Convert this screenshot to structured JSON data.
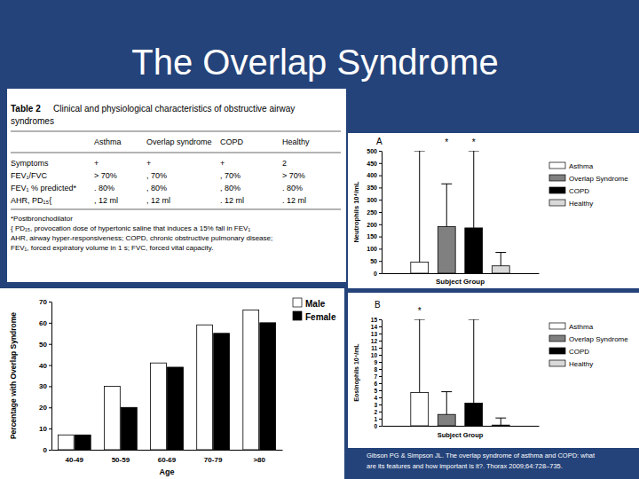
{
  "title": "The Overlap Syndrome",
  "table": {
    "caption": "Table 2",
    "title_lines": [
      "Clinical and physiological characteristics of obstructive airway",
      "syndromes"
    ],
    "columns": [
      "Asthma",
      "Overlap syndrome",
      "COPD",
      "Healthy"
    ],
    "rows": [
      {
        "label": "Symptoms",
        "cells": [
          "+",
          "+",
          "+",
          "2"
        ]
      },
      {
        "label": "FEV₁/FVC",
        "cells": [
          "> 70%",
          ", 70%",
          ", 70%",
          "> 70%"
        ]
      },
      {
        "label": "FEV₁ % predicted*",
        "cells": [
          ". 80%",
          ", 80%",
          ", 80%",
          ". 80%"
        ]
      },
      {
        "label": "AHR, PD₁₅{",
        "cells": [
          ", 12 ml",
          ", 12 ml",
          ". 12 ml",
          ". 12 ml"
        ]
      }
    ],
    "footnotes": [
      "*Postbronchodilator",
      "{ PD₁₅, provocation dose of hypertonic saline that induces a 15% fall in FEV₁",
      "AHR, airway hyper-responsiveness; COPD, chronic obstructive pulmonary disease;",
      "FEV₁, forced expiratory volume in 1 s; FVC, forced vital capacity."
    ]
  },
  "chart_data": [
    {
      "type": "bar",
      "title": "A",
      "y_label": "Neutrophils 10⁴/mL",
      "x_label": "Subject Group",
      "categories": [
        null
      ],
      "series": [
        {
          "name": "Asthma",
          "color": "#ffffff",
          "values": [
            45
          ],
          "errors": [
            455
          ]
        },
        {
          "name": "Overlap Syndrome",
          "color": "#808080",
          "values": [
            190
          ],
          "errors": [
            175
          ]
        },
        {
          "name": "COPD",
          "color": "#000000",
          "values": [
            185
          ],
          "errors": [
            315
          ]
        },
        {
          "name": "Healthy",
          "color": "#d9d9d9",
          "values": [
            30
          ],
          "errors": [
            55
          ]
        }
      ],
      "ylim": [
        0,
        500
      ],
      "yticks": [
        0,
        50,
        100,
        150,
        200,
        250,
        300,
        350,
        400,
        450,
        500
      ],
      "tick_labels": "y",
      "legend": "right",
      "annotations": [
        {
          "text": "*",
          "series": "Overlap Syndrome"
        },
        {
          "text": "*",
          "series": "COPD"
        }
      ]
    },
    {
      "type": "bar",
      "y_label": "Percentage with Overlap Syndrome",
      "x_label": "Age",
      "categories": [
        "40-49",
        "50-59",
        "60-69",
        "70-79",
        ">80"
      ],
      "series": [
        {
          "name": "Male",
          "color": "#ffffff",
          "values": [
            7,
            30,
            41,
            59,
            66
          ]
        },
        {
          "name": "Female",
          "color": "#000000",
          "values": [
            7,
            20,
            39,
            55,
            60
          ]
        }
      ],
      "ylim": [
        0,
        70
      ],
      "yticks": [
        0,
        10,
        20,
        30,
        40,
        50,
        60,
        70
      ],
      "legend": "right"
    },
    {
      "type": "bar",
      "title": "B",
      "y_label": "Eosinophils 10⁴/mL",
      "x_label": "Subject Group",
      "categories": [
        null
      ],
      "series": [
        {
          "name": "Asthma",
          "color": "#ffffff",
          "values": [
            4.7
          ],
          "errors": [
            10.3
          ]
        },
        {
          "name": "Overlap Syndrome",
          "color": "#808080",
          "values": [
            1.6
          ],
          "errors": [
            3.2
          ]
        },
        {
          "name": "COPD",
          "color": "#000000",
          "values": [
            3.2
          ],
          "errors": [
            11.8
          ]
        },
        {
          "name": "Healthy",
          "color": "#d9d9d9",
          "values": [
            0.1
          ],
          "errors": [
            1.0
          ]
        }
      ],
      "ylim": [
        0,
        15
      ],
      "yticks": [
        0,
        1,
        2,
        3,
        4,
        5,
        6,
        7,
        8,
        9,
        10,
        11,
        12,
        13,
        14,
        15
      ],
      "tick_labels": "y",
      "legend": "right",
      "annotations": [
        {
          "text": "*",
          "series": "Asthma"
        }
      ]
    }
  ],
  "citation": [
    "Gibson PG & Simpson JL. The overlap syndrome of asthma and COPD: what",
    "are its features and how important is it?. Thorax 2009;64:728–735."
  ]
}
